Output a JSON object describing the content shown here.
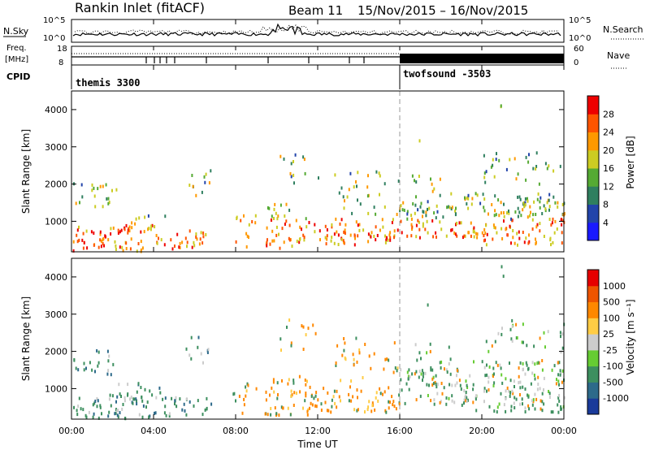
{
  "header": {
    "site": "Rankin Inlet (fitACF)",
    "beam": "Beam 11",
    "date_range": "15/Nov/2015 – 16/Nov/2015"
  },
  "nsky_panel": {
    "left_label": "N.Sky",
    "right_label": "N.Search",
    "left_ticks": [
      "10^5",
      "10^0"
    ],
    "right_ticks": [
      "10^5",
      "10^0"
    ]
  },
  "freq_panel": {
    "left_label_1": "Freq.",
    "left_label_2": "[MHz]",
    "left_ticks": [
      "18",
      "8"
    ],
    "right_label": "Nave",
    "right_ticks": [
      "60",
      "0"
    ],
    "cpid_label": "CPID",
    "modes": [
      {
        "name": "themis 3300",
        "start_hour": 0
      },
      {
        "name": "twofsound -3503",
        "start_hour": 16
      }
    ]
  },
  "chart_data": [
    {
      "type": "heatmap",
      "name": "power",
      "ylabel": "Slant Range [km]",
      "xlabel": "",
      "ylim": [
        180,
        4500
      ],
      "yticks": [
        "1000",
        "2000",
        "3000",
        "4000"
      ],
      "colorbar_label": "Power [dB]",
      "colorbar_ticks": [
        "28",
        "24",
        "20",
        "16",
        "12",
        "8",
        "4"
      ],
      "colors": [
        "#1a1aff",
        "#2244aa",
        "#2f7f5f",
        "#55aa33",
        "#cccc22",
        "#ff9900",
        "#ff5500",
        "#ee0000"
      ]
    },
    {
      "type": "heatmap",
      "name": "velocity",
      "ylabel": "Slant Range [km]",
      "xlabel": "Time UT",
      "ylim": [
        180,
        4500
      ],
      "yticks": [
        "1000",
        "2000",
        "3000",
        "4000"
      ],
      "xticks": [
        "00:00",
        "04:00",
        "08:00",
        "12:00",
        "16:00",
        "20:00",
        "00:00"
      ],
      "colorbar_label": "Velocity  [m s⁻¹]",
      "colorbar_ticks": [
        "1000",
        "500",
        "100",
        "25",
        "-25",
        "-100",
        "-500",
        "-1000"
      ],
      "colors": [
        "#1a3a9a",
        "#2d6a8a",
        "#3d8f5f",
        "#66cc33",
        "#cccccc",
        "#ffcc44",
        "#ff8800",
        "#ee5500",
        "#e60000"
      ]
    }
  ]
}
